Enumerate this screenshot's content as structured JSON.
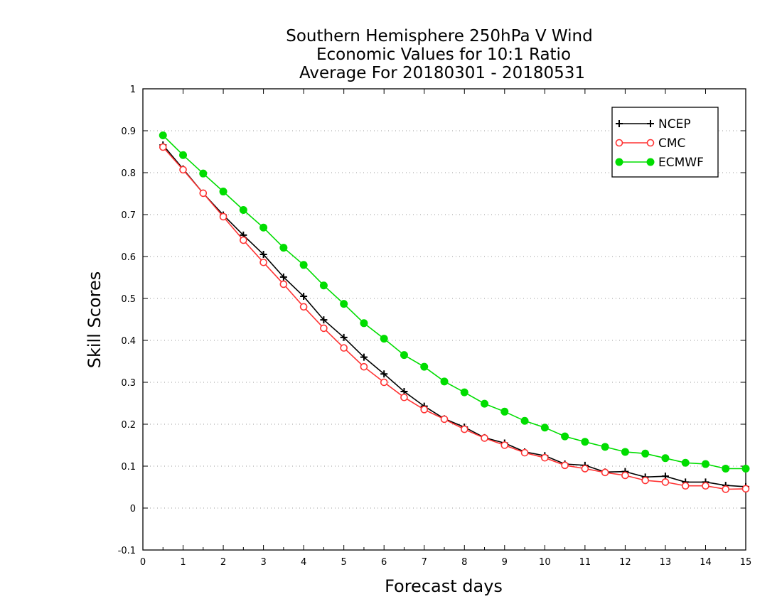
{
  "chart_data": {
    "type": "line",
    "title": [
      "Southern Hemisphere 250hPa V Wind",
      "Economic Values for 10:1 Ratio",
      "Average For 20180301 - 20180531"
    ],
    "xlabel": "Forecast days",
    "ylabel": "Skill Scores",
    "xlim": [
      0,
      15
    ],
    "ylim": [
      -0.1,
      1
    ],
    "x_ticks": [
      0,
      1,
      2,
      3,
      4,
      5,
      6,
      7,
      8,
      9,
      10,
      11,
      12,
      13,
      14,
      15
    ],
    "x_tick_labels": [
      "0",
      "1",
      "2",
      "3",
      "4",
      "5",
      "6",
      "7",
      "8",
      "9",
      "10",
      "11",
      "12",
      "13",
      "14",
      "15"
    ],
    "y_ticks": [
      -0.1,
      0,
      0.1,
      0.2,
      0.3,
      0.4,
      0.5,
      0.6,
      0.7,
      0.8,
      0.9,
      1
    ],
    "y_tick_labels": [
      "-0.1",
      "0",
      "0.1",
      "0.2",
      "0.3",
      "0.4",
      "0.5",
      "0.6",
      "0.7",
      "0.8",
      "0.9",
      "1"
    ],
    "grid": "horizontal dotted",
    "legend_position": "top-right",
    "x": [
      0.5,
      1,
      1.5,
      2,
      2.5,
      3,
      3.5,
      4,
      4.5,
      5,
      5.5,
      6,
      6.5,
      7,
      7.5,
      8,
      8.5,
      9,
      9.5,
      10,
      10.5,
      11,
      11.5,
      12,
      12.5,
      13,
      13.5,
      14,
      14.5,
      15
    ],
    "series": [
      {
        "name": "NCEP",
        "color": "#000000",
        "marker": "plus",
        "values": [
          0.866,
          0.809,
          0.751,
          0.699,
          0.651,
          0.605,
          0.551,
          0.505,
          0.449,
          0.407,
          0.36,
          0.32,
          0.278,
          0.243,
          0.213,
          0.193,
          0.168,
          0.155,
          0.134,
          0.125,
          0.105,
          0.102,
          0.086,
          0.087,
          0.074,
          0.076,
          0.062,
          0.062,
          0.054,
          0.051
        ]
      },
      {
        "name": "CMC",
        "color": "#ff3333",
        "marker": "open-circle",
        "values": [
          0.861,
          0.807,
          0.751,
          0.695,
          0.639,
          0.586,
          0.534,
          0.48,
          0.429,
          0.382,
          0.337,
          0.3,
          0.264,
          0.235,
          0.212,
          0.188,
          0.167,
          0.15,
          0.132,
          0.12,
          0.102,
          0.094,
          0.085,
          0.078,
          0.066,
          0.062,
          0.053,
          0.053,
          0.045,
          0.046
        ]
      },
      {
        "name": "ECMWF",
        "color": "#00dd00",
        "marker": "filled-circle",
        "values": [
          0.889,
          0.842,
          0.798,
          0.755,
          0.711,
          0.669,
          0.621,
          0.58,
          0.531,
          0.487,
          0.441,
          0.404,
          0.365,
          0.337,
          0.302,
          0.276,
          0.249,
          0.23,
          0.208,
          0.192,
          0.171,
          0.158,
          0.146,
          0.134,
          0.13,
          0.119,
          0.108,
          0.105,
          0.094,
          0.094
        ]
      }
    ]
  }
}
